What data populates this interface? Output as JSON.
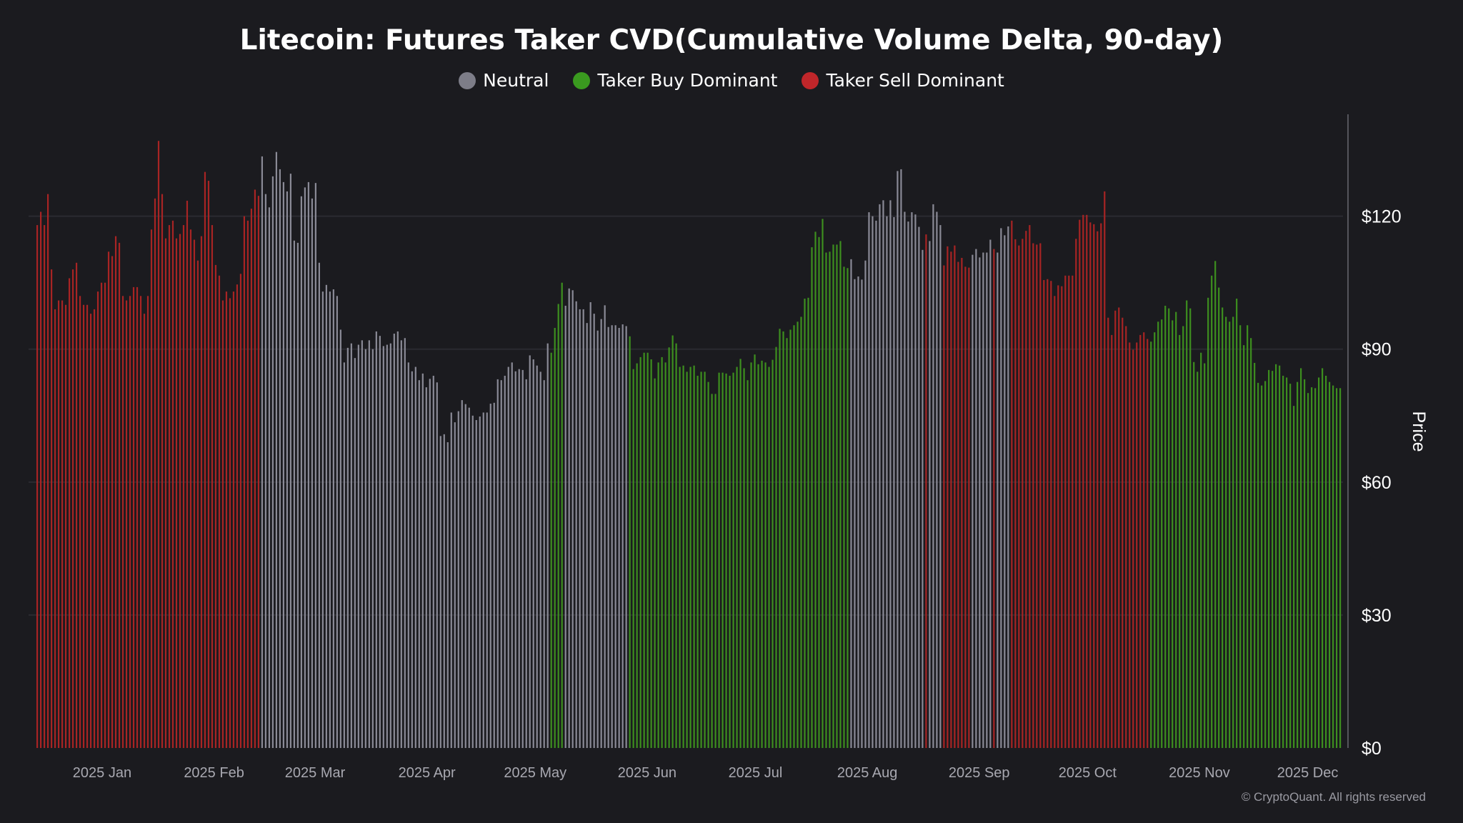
{
  "chart_data": {
    "type": "bar",
    "title": "Litecoin: Futures Taker CVD(Cumulative Volume Delta, 90-day)",
    "ylabel": "Price",
    "ylim": [
      0,
      143
    ],
    "yticks": [
      {
        "v": 0,
        "label": "$0"
      },
      {
        "v": 30,
        "label": "$30"
      },
      {
        "v": 60,
        "label": "$60"
      },
      {
        "v": 90,
        "label": "$90"
      },
      {
        "v": 120,
        "label": "$120"
      }
    ],
    "xlim": [
      "2024-12-14",
      "2025-12-10"
    ],
    "xticks": [
      {
        "date": "2025-01-01",
        "label": "2025 Jan"
      },
      {
        "date": "2025-02-01",
        "label": "2025 Feb"
      },
      {
        "date": "2025-03-01",
        "label": "2025 Mar"
      },
      {
        "date": "2025-04-01",
        "label": "2025 Apr"
      },
      {
        "date": "2025-05-01",
        "label": "2025 May"
      },
      {
        "date": "2025-06-01",
        "label": "2025 Jun"
      },
      {
        "date": "2025-07-01",
        "label": "2025 Jul"
      },
      {
        "date": "2025-08-01",
        "label": "2025 Aug"
      },
      {
        "date": "2025-09-01",
        "label": "2025 Sep"
      },
      {
        "date": "2025-10-01",
        "label": "2025 Oct"
      },
      {
        "date": "2025-11-01",
        "label": "2025 Nov"
      },
      {
        "date": "2025-12-01",
        "label": "2025 Dec"
      }
    ],
    "grid": true,
    "legend_placement": "top-center",
    "legend": [
      {
        "key": "neutral",
        "label": "Neutral",
        "color": "#7d7d88"
      },
      {
        "key": "buy",
        "label": "Taker Buy Dominant",
        "color": "#3a9a1f"
      },
      {
        "key": "sell",
        "label": "Taker Sell Dominant",
        "color": "#c0262a"
      }
    ],
    "bar_colors": {
      "neutral": "#8a8a96",
      "buy": "#3d8f1f",
      "sell": "#a82424"
    },
    "segments": [
      {
        "state": "sell",
        "values": [
          118,
          121,
          118,
          125,
          108,
          99,
          101,
          101,
          100,
          106,
          108,
          109.5,
          102,
          100,
          100,
          98,
          99,
          103,
          105,
          105,
          112,
          111,
          115.5,
          114,
          102,
          101,
          102,
          104,
          104,
          102,
          98,
          102,
          117,
          124,
          137,
          125,
          115,
          118,
          119,
          115,
          116,
          118,
          123.5,
          117,
          114.7,
          110,
          115.5,
          130,
          128,
          118,
          109,
          106.6,
          101,
          103,
          101.5,
          103,
          104.6,
          107,
          120,
          119,
          121.7,
          126,
          124.6
        ]
      },
      {
        "state": "neutral",
        "values": [
          133.5,
          125,
          122,
          129,
          134.5,
          130.6,
          127.7,
          125.6,
          129.6,
          114.5,
          114,
          124.5,
          126.5,
          127.7,
          124,
          127.5,
          109.5,
          103,
          104.5,
          103,
          103.5,
          102,
          94.4,
          87,
          90.3,
          91.3,
          88,
          91,
          92,
          90,
          92,
          90,
          94,
          93,
          90.7,
          91,
          91.3,
          93.5,
          94,
          92,
          92.5,
          87,
          85,
          86,
          83,
          84.5,
          81.4,
          83.3,
          84,
          82.5,
          70.4,
          70.8,
          69,
          75.7,
          73.5,
          76,
          78.5,
          77.6,
          76.8,
          75,
          74,
          74.8,
          75.7,
          75.7,
          77.7,
          77.9,
          83.2,
          83,
          84,
          86,
          87,
          85,
          85.5,
          85.3,
          83.2,
          88.6,
          87.7,
          86.3,
          84.9,
          83,
          91.3
        ]
      },
      {
        "state": "buy",
        "values": [
          89.2,
          94.8,
          100.2,
          105
        ]
      },
      {
        "state": "neutral",
        "values": [
          99.8,
          103.7,
          103.3,
          100.8,
          99,
          99,
          95.9,
          100.6,
          98,
          94.2,
          96.8,
          99.9,
          95,
          95.4,
          95.4,
          94.8,
          95.6,
          95.2
        ]
      },
      {
        "state": "buy",
        "values": [
          92.9,
          85.5,
          86.8,
          88.2,
          89.2,
          89.2,
          87.7,
          83.4,
          87,
          88.2,
          87,
          90.4,
          93.1,
          91.3,
          86,
          86.3,
          84.9,
          86,
          86.3,
          84,
          84.9,
          84.9,
          82.6,
          79.9,
          79.9,
          84.7,
          84.7,
          84.5,
          84,
          84.7,
          86,
          87.8,
          85.7,
          83,
          87,
          88.8,
          86.6,
          87.4,
          87,
          86,
          87.6,
          90.5,
          94.6,
          94,
          92.5,
          94.4,
          95.4,
          96.2,
          97.3,
          101.4,
          101.6,
          113,
          116.5,
          115.3,
          119.4,
          111.8,
          112,
          113.6,
          113.6,
          114.4,
          108.6,
          108.3
        ]
      },
      {
        "state": "neutral",
        "values": [
          110.3,
          105.8,
          106.4,
          105.7,
          110,
          120.9,
          120,
          119,
          122.7,
          123.6,
          120,
          123.6,
          119.8,
          130.2,
          130.6,
          121,
          118.8,
          120.9,
          120.4,
          117.6,
          112.4
        ]
      },
      {
        "state": "sell",
        "values": [
          115.9
        ]
      },
      {
        "state": "neutral",
        "values": [
          114.4,
          122.7,
          121,
          118
        ]
      },
      {
        "state": "sell",
        "values": [
          108.9,
          113.2,
          112,
          113.4,
          109.7,
          110.6,
          108.6,
          108.4
        ]
      },
      {
        "state": "neutral",
        "values": [
          111.3,
          112.6,
          110.7,
          111.8,
          111.8,
          114.7
        ]
      },
      {
        "state": "sell",
        "values": [
          112.6
        ]
      },
      {
        "state": "neutral",
        "values": [
          111.8,
          117.3,
          115.7,
          117.7
        ]
      },
      {
        "state": "sell",
        "values": [
          119,
          114.8,
          113.4,
          114.9,
          116.7,
          118,
          113.9,
          113.6,
          113.9,
          105.6,
          105.8,
          105.4,
          102,
          104.4,
          104.2,
          106.6,
          106.6,
          106.6,
          114.9,
          119.2,
          120.3,
          120.3,
          118.6,
          118.2,
          116.6,
          118.4,
          125.6,
          97.1,
          93.2,
          98.7,
          99.4,
          97.1,
          95.2,
          91.5,
          89.9,
          91.5,
          93.2,
          93.8,
          92.3
        ]
      },
      {
        "state": "buy",
        "values": [
          91.7,
          93.8,
          96.2,
          96.7,
          99.8,
          99.2,
          96.5,
          98.4,
          93.2,
          95.2,
          101,
          99.2,
          87.1,
          84.9,
          89.2,
          86.8,
          101.6,
          106.6,
          109.9,
          103.9,
          99.4,
          97.3,
          96.2,
          97.3,
          101.4,
          95.4,
          90.9,
          95.4,
          92.5,
          86.9,
          82.4,
          81.8,
          82.8,
          85.3,
          85.1,
          86.6,
          86.3,
          84,
          83.6,
          82.2,
          77.2,
          82.6,
          85.7,
          83.2,
          80.1,
          81.4,
          81.2,
          83.6,
          85.7,
          84,
          82.6,
          81.8,
          81.2,
          81.2
        ]
      }
    ]
  },
  "copyright": "© CryptoQuant. All rights reserved"
}
